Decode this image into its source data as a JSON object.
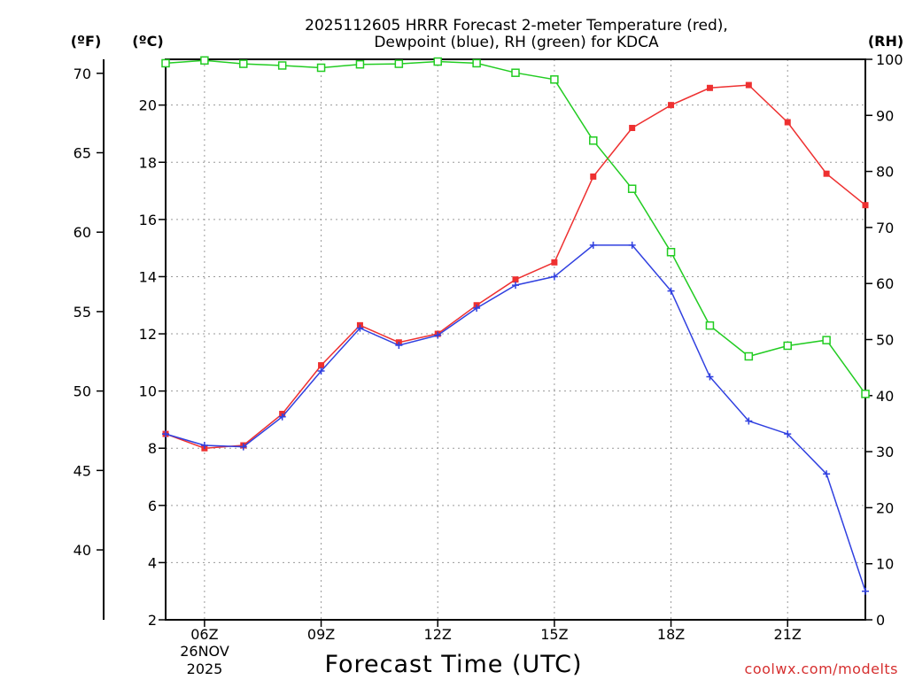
{
  "chart_data": {
    "type": "line",
    "title_line1": "2025112605 HRRR Forecast 2-meter Temperature (red),",
    "title_line2": "Dewpoint (blue), RH (green) for KDCA",
    "xlabel": "Forecast Time (UTC)",
    "credit": "coolwx.com/modelts",
    "units": {
      "fahrenheit": "(ºF)",
      "celsius": "(ºC)",
      "rh": "(RH)"
    },
    "x_range": [
      5,
      23
    ],
    "x_ticks": [
      {
        "hour": 6,
        "label": "06Z"
      },
      {
        "hour": 9,
        "label": "09Z"
      },
      {
        "hour": 12,
        "label": "12Z"
      },
      {
        "hour": 15,
        "label": "15Z"
      },
      {
        "hour": 18,
        "label": "18Z"
      },
      {
        "hour": 21,
        "label": "21Z"
      }
    ],
    "date_label": [
      "26NOV",
      "2025"
    ],
    "y_celsius": {
      "range": [
        2,
        21.6
      ],
      "ticks": [
        2,
        4,
        6,
        8,
        10,
        12,
        14,
        16,
        18,
        20
      ]
    },
    "y_fahrenheit": {
      "ticks": [
        40,
        45,
        50,
        55,
        60,
        65,
        70
      ]
    },
    "y_rh": {
      "range": [
        0,
        100
      ],
      "ticks": [
        0,
        10,
        20,
        30,
        40,
        50,
        60,
        70,
        80,
        90,
        100
      ]
    },
    "series": [
      {
        "name": "Temperature",
        "axis": "celsius",
        "color": "#ee3030",
        "marker": "filled-square",
        "x": [
          5,
          6,
          7,
          8,
          9,
          10,
          11,
          12,
          13,
          14,
          15,
          16,
          17,
          18,
          19,
          20,
          21,
          22,
          23
        ],
        "values": [
          8.5,
          8.0,
          8.1,
          9.2,
          10.9,
          12.3,
          11.7,
          12.0,
          13.0,
          13.9,
          14.5,
          17.5,
          19.2,
          20.0,
          20.6,
          20.7,
          19.4,
          17.6,
          16.5
        ]
      },
      {
        "name": "Dewpoint",
        "axis": "celsius",
        "color": "#3040e0",
        "marker": "plus",
        "x": [
          5,
          6,
          7,
          8,
          9,
          10,
          11,
          12,
          13,
          14,
          15,
          16,
          17,
          18,
          19,
          20,
          21,
          22,
          23
        ],
        "values": [
          8.5,
          8.1,
          8.05,
          9.1,
          10.7,
          12.2,
          11.6,
          11.95,
          12.9,
          13.7,
          14.0,
          15.1,
          15.1,
          13.5,
          10.5,
          8.95,
          8.5,
          7.1,
          3.0
        ]
      },
      {
        "name": "RH",
        "axis": "rh",
        "color": "#22cc22",
        "marker": "open-square",
        "x": [
          5,
          6,
          7,
          8,
          9,
          10,
          11,
          12,
          13,
          14,
          15,
          16,
          17,
          18,
          19,
          20,
          21,
          22,
          23
        ],
        "values": [
          99.3,
          99.8,
          99.2,
          98.9,
          98.5,
          99.1,
          99.2,
          99.6,
          99.3,
          97.6,
          96.4,
          85.5,
          76.9,
          65.6,
          52.5,
          47.0,
          48.9,
          49.9,
          40.3
        ]
      }
    ]
  }
}
